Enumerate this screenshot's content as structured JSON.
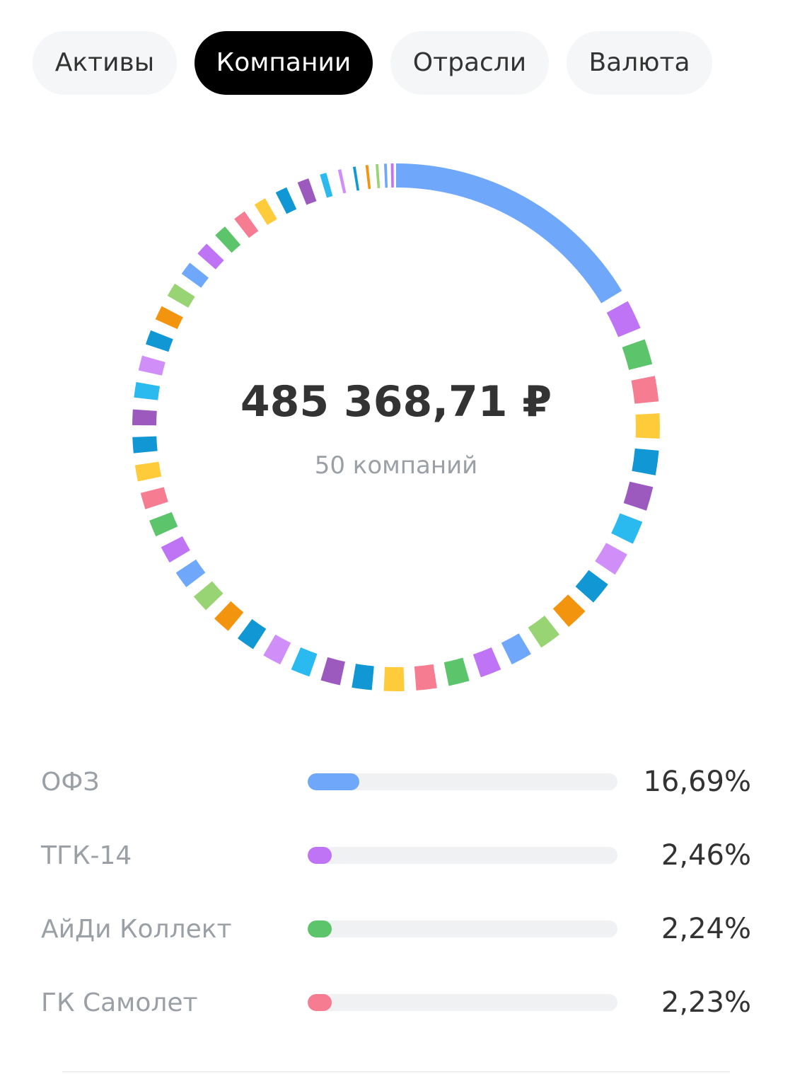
{
  "tabs": [
    {
      "label": "Активы",
      "active": false
    },
    {
      "label": "Компании",
      "active": true
    },
    {
      "label": "Отрасли",
      "active": false
    },
    {
      "label": "Валюта",
      "active": false
    }
  ],
  "summary": {
    "total": "485 368,71 ₽",
    "count_label": "50 компаний"
  },
  "legend": [
    {
      "name": "ОФЗ",
      "value_label": "16,69%",
      "share": 16.69,
      "color": "#6fa8fb"
    },
    {
      "name": "ТГК-14",
      "value_label": "2,46%",
      "share": 2.46,
      "color": "#bf73f5"
    },
    {
      "name": "АйДи Коллект",
      "value_label": "2,24%",
      "share": 2.24,
      "color": "#5cc46a"
    },
    {
      "name": "ГК Самолет",
      "value_label": "2,23%",
      "share": 2.23,
      "color": "#f67c92"
    }
  ],
  "chart_data": {
    "type": "pie",
    "title": "",
    "segment_count": 50,
    "values": [
      16.69,
      2.46,
      2.24,
      2.23,
      2.2,
      2.18,
      2.15,
      2.12,
      2.1,
      2.08,
      2.05,
      2.03,
      2.0,
      1.98,
      1.96,
      1.94,
      1.92,
      1.9,
      1.88,
      1.86,
      1.84,
      1.82,
      1.8,
      1.78,
      1.76,
      1.74,
      1.72,
      1.7,
      1.68,
      1.66,
      1.64,
      1.62,
      1.6,
      1.58,
      1.56,
      1.54,
      1.52,
      1.5,
      1.48,
      1.46,
      1.44,
      1.42,
      1.4,
      1.1,
      0.9,
      0.75,
      0.6,
      0.5,
      0.4,
      0.31
    ],
    "colors": [
      "#6fa8fb",
      "#bf73f5",
      "#5cc46a",
      "#f67c92",
      "#fecb3a",
      "#1097d4",
      "#9c5abf",
      "#2abaf0",
      "#d08ff8",
      "#1097d4",
      "#f3940f",
      "#98d474",
      "#6fa8fb",
      "#bf73f5",
      "#5cc46a",
      "#f67c92",
      "#fecb3a",
      "#1097d4",
      "#9c5abf",
      "#2abaf0",
      "#d08ff8",
      "#1097d4",
      "#f3940f",
      "#98d474",
      "#6fa8fb",
      "#bf73f5",
      "#5cc46a",
      "#f67c92",
      "#fecb3a",
      "#1097d4",
      "#9c5abf",
      "#2abaf0",
      "#d08ff8",
      "#1097d4",
      "#f3940f",
      "#98d474",
      "#6fa8fb",
      "#bf73f5",
      "#5cc46a",
      "#f67c92",
      "#fecb3a",
      "#1097d4",
      "#9c5abf",
      "#2abaf0",
      "#d08ff8",
      "#1097d4",
      "#f3940f",
      "#98d474",
      "#6fa8fb",
      "#bf73f5"
    ]
  }
}
